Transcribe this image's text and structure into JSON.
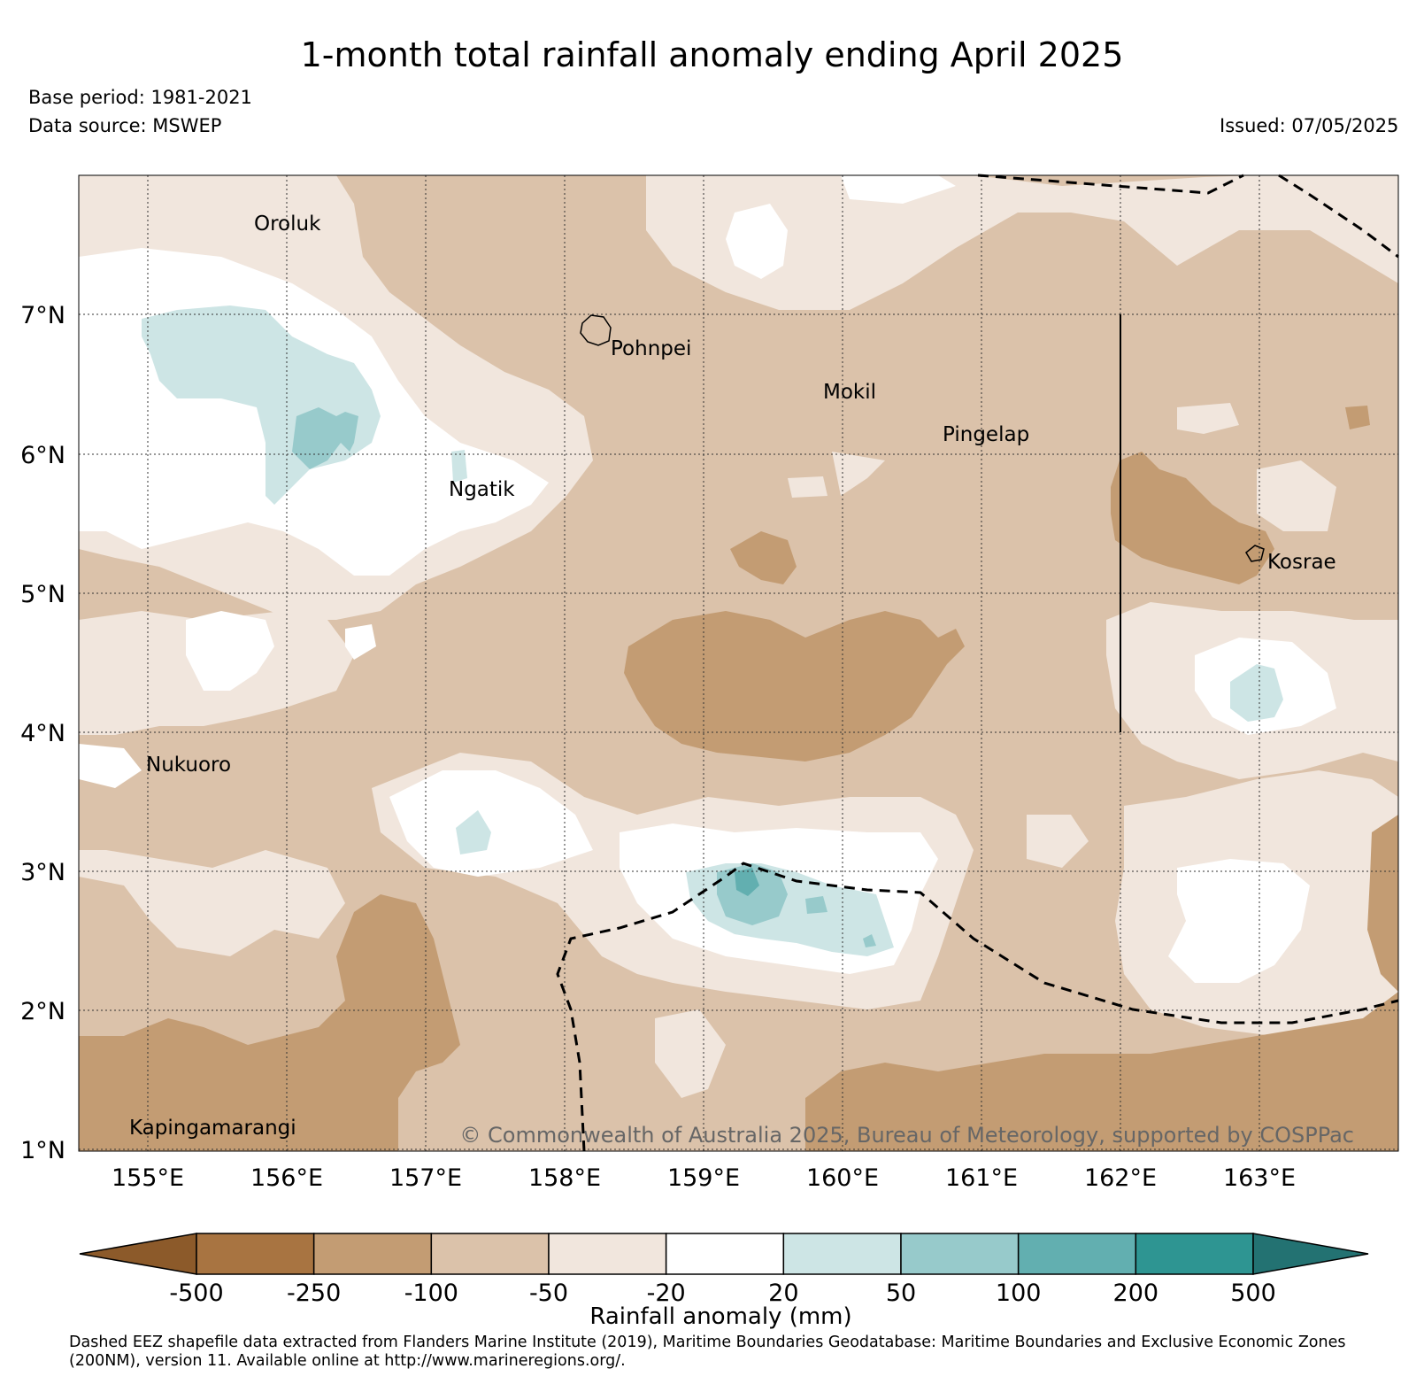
{
  "title": "1-month total rainfall anomaly ending April 2025",
  "base_period": "Base period: 1981-2021",
  "data_source": "Data source: MSWEP",
  "issued": "Issued: 07/05/2025",
  "copyright": "© Commonwealth of Australia 2025, Bureau of Meteorology, supported by COSPPac",
  "lat_labels": [
    "7°N",
    "6°N",
    "5°N",
    "4°N",
    "3°N",
    "2°N",
    "1°N"
  ],
  "lon_labels": [
    "155°E",
    "156°E",
    "157°E",
    "158°E",
    "159°E",
    "160°E",
    "161°E",
    "162°E",
    "163°E"
  ],
  "places": [
    "Oroluk",
    "Pohnpei",
    "Mokil",
    "Pingelap",
    "Ngatik",
    "Kosrae",
    "Nukuoro",
    "Kapingamarangi"
  ],
  "colorbar": {
    "title": "Rainfall anomaly (mm)",
    "ticks": [
      "-500",
      "-250",
      "-100",
      "-50",
      "-20",
      "20",
      "50",
      "100",
      "200",
      "500"
    ],
    "colors": [
      "#8c5a2a",
      "#a87441",
      "#c39c73",
      "#dbc2aa",
      "#f1e6dd",
      "#ffffff",
      "#cde5e5",
      "#97cacb",
      "#62afb0",
      "#2e9592",
      "#237272"
    ]
  },
  "footer": "Dashed EEZ shapefile data extracted from Flanders Marine Institute (2019), Maritime Boundaries Geodatabase: Maritime Boundaries and Exclusive Economic Zones (200NM), version 11. Available online at http://www.marineregions.org/."
}
